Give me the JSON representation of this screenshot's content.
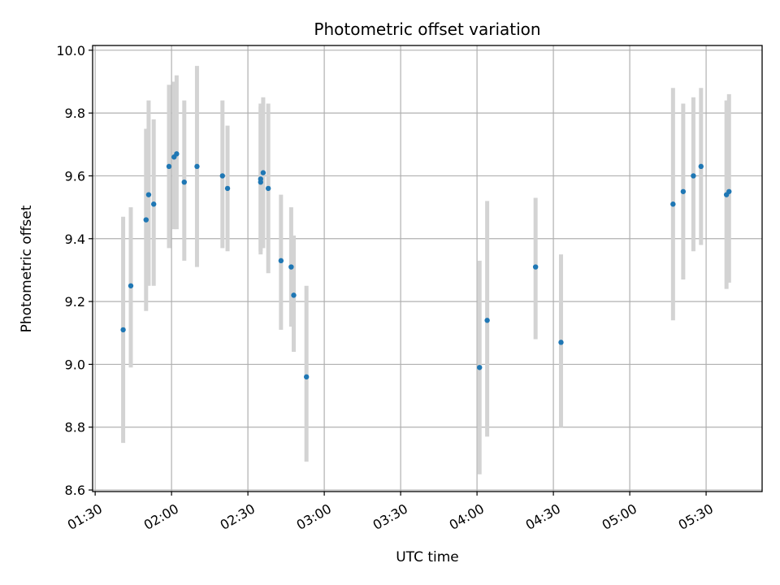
{
  "chart_data": {
    "type": "scatter",
    "title": "Photometric offset variation",
    "xlabel": "UTC time",
    "ylabel": "Photometric offset",
    "xlim": [
      "01:29",
      "05:52"
    ],
    "ylim": [
      8.595,
      10.015
    ],
    "x_ticks": [
      "01:30",
      "02:00",
      "02:30",
      "03:00",
      "03:30",
      "04:00",
      "04:30",
      "05:00",
      "05:30"
    ],
    "y_ticks": [
      8.6,
      8.8,
      9.0,
      9.2,
      9.4,
      9.6,
      9.8,
      10.0
    ],
    "grid": true,
    "colors": {
      "point": "#1f77b4",
      "errorbar": "#d3d3d3",
      "grid": "#b0b0b0"
    },
    "series": [
      {
        "points": [
          {
            "t": "01:41",
            "y": 9.11,
            "lo": 8.75,
            "hi": 9.47
          },
          {
            "t": "01:44",
            "y": 9.25,
            "lo": 8.99,
            "hi": 9.5
          },
          {
            "t": "01:50",
            "y": 9.46,
            "lo": 9.17,
            "hi": 9.75
          },
          {
            "t": "01:51",
            "y": 9.54,
            "lo": 9.25,
            "hi": 9.84
          },
          {
            "t": "01:53",
            "y": 9.51,
            "lo": 9.25,
            "hi": 9.78
          },
          {
            "t": "01:59",
            "y": 9.63,
            "lo": 9.37,
            "hi": 9.89
          },
          {
            "t": "02:01",
            "y": 9.66,
            "lo": 9.43,
            "hi": 9.9
          },
          {
            "t": "02:02",
            "y": 9.67,
            "lo": 9.43,
            "hi": 9.92
          },
          {
            "t": "02:05",
            "y": 9.58,
            "lo": 9.33,
            "hi": 9.84
          },
          {
            "t": "02:10",
            "y": 9.63,
            "lo": 9.31,
            "hi": 9.95
          },
          {
            "t": "02:20",
            "y": 9.6,
            "lo": 9.37,
            "hi": 9.84
          },
          {
            "t": "02:22",
            "y": 9.56,
            "lo": 9.36,
            "hi": 9.76
          },
          {
            "t": "02:35",
            "y": 9.58,
            "lo": 9.35,
            "hi": 9.82
          },
          {
            "t": "02:35",
            "y": 9.59,
            "lo": 9.36,
            "hi": 9.83
          },
          {
            "t": "02:36",
            "y": 9.61,
            "lo": 9.37,
            "hi": 9.85
          },
          {
            "t": "02:38",
            "y": 9.56,
            "lo": 9.29,
            "hi": 9.83
          },
          {
            "t": "02:43",
            "y": 9.33,
            "lo": 9.11,
            "hi": 9.54
          },
          {
            "t": "02:47",
            "y": 9.31,
            "lo": 9.12,
            "hi": 9.5
          },
          {
            "t": "02:48",
            "y": 9.22,
            "lo": 9.04,
            "hi": 9.41
          },
          {
            "t": "02:53",
            "y": 8.96,
            "lo": 8.69,
            "hi": 9.25
          },
          {
            "t": "04:01",
            "y": 8.99,
            "lo": 8.65,
            "hi": 9.33
          },
          {
            "t": "04:04",
            "y": 9.14,
            "lo": 8.77,
            "hi": 9.52
          },
          {
            "t": "04:23",
            "y": 9.31,
            "lo": 9.08,
            "hi": 9.53
          },
          {
            "t": "04:33",
            "y": 9.07,
            "lo": 8.8,
            "hi": 9.35
          },
          {
            "t": "05:17",
            "y": 9.51,
            "lo": 9.14,
            "hi": 9.88
          },
          {
            "t": "05:21",
            "y": 9.55,
            "lo": 9.27,
            "hi": 9.83
          },
          {
            "t": "05:25",
            "y": 9.6,
            "lo": 9.36,
            "hi": 9.85
          },
          {
            "t": "05:28",
            "y": 9.63,
            "lo": 9.38,
            "hi": 9.88
          },
          {
            "t": "05:38",
            "y": 9.54,
            "lo": 9.24,
            "hi": 9.84
          },
          {
            "t": "05:39",
            "y": 9.55,
            "lo": 9.26,
            "hi": 9.86
          }
        ]
      }
    ]
  }
}
